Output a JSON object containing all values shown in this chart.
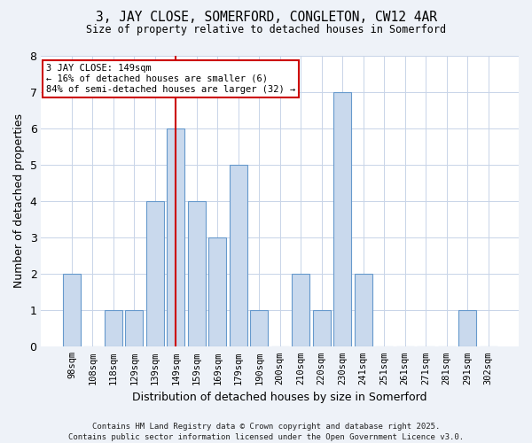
{
  "title1": "3, JAY CLOSE, SOMERFORD, CONGLETON, CW12 4AR",
  "title2": "Size of property relative to detached houses in Somerford",
  "xlabel": "Distribution of detached houses by size in Somerford",
  "ylabel": "Number of detached properties",
  "bins": [
    "98sqm",
    "108sqm",
    "118sqm",
    "129sqm",
    "139sqm",
    "149sqm",
    "159sqm",
    "169sqm",
    "179sqm",
    "190sqm",
    "200sqm",
    "210sqm",
    "220sqm",
    "230sqm",
    "241sqm",
    "251sqm",
    "261sqm",
    "271sqm",
    "281sqm",
    "291sqm",
    "302sqm"
  ],
  "counts": [
    2,
    0,
    1,
    1,
    4,
    6,
    4,
    3,
    5,
    1,
    0,
    2,
    1,
    7,
    2,
    0,
    0,
    0,
    0,
    1,
    0
  ],
  "subject_bin_index": 5,
  "bar_color": "#c9d9ed",
  "bar_edge_color": "#6699cc",
  "subject_line_color": "#cc0000",
  "annotation_box_color": "#cc0000",
  "annotation_text": "3 JAY CLOSE: 149sqm\n← 16% of detached houses are smaller (6)\n84% of semi-detached houses are larger (32) →",
  "footer": "Contains HM Land Registry data © Crown copyright and database right 2025.\nContains public sector information licensed under the Open Government Licence v3.0.",
  "ylim": [
    0,
    8
  ],
  "bg_color": "#eef2f8",
  "plot_bg_color": "#ffffff",
  "grid_color": "#c8d4e8"
}
